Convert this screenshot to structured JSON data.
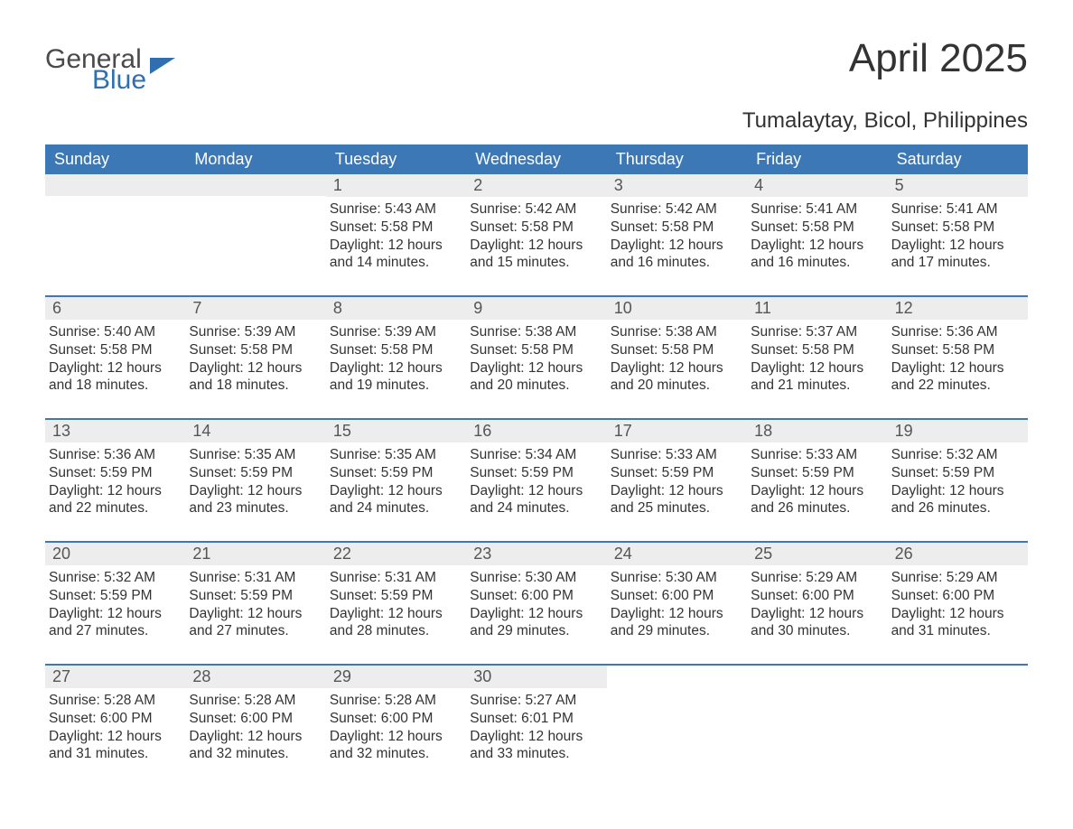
{
  "logo": {
    "text1": "General",
    "text2": "Blue",
    "color1": "#4a4a4a",
    "color2": "#2f6fb0"
  },
  "title": "April 2025",
  "location": "Tumalaytay, Bicol, Philippines",
  "colors": {
    "header_bg": "#3b78b5",
    "header_text": "#ffffff",
    "daynum_bg": "#ededed",
    "daynum_text": "#555555",
    "body_text": "#333333",
    "week_border": "#3b78b5",
    "page_bg": "#ffffff"
  },
  "fonts": {
    "title_size": 44,
    "location_size": 24,
    "header_size": 18,
    "daynum_size": 18,
    "body_size": 15.5
  },
  "day_names": [
    "Sunday",
    "Monday",
    "Tuesday",
    "Wednesday",
    "Thursday",
    "Friday",
    "Saturday"
  ],
  "weeks": [
    [
      {
        "n": "",
        "sunrise": "",
        "sunset": "",
        "daylight1": "",
        "daylight2": ""
      },
      {
        "n": "",
        "sunrise": "",
        "sunset": "",
        "daylight1": "",
        "daylight2": ""
      },
      {
        "n": "1",
        "sunrise": "Sunrise: 5:43 AM",
        "sunset": "Sunset: 5:58 PM",
        "daylight1": "Daylight: 12 hours",
        "daylight2": "and 14 minutes."
      },
      {
        "n": "2",
        "sunrise": "Sunrise: 5:42 AM",
        "sunset": "Sunset: 5:58 PM",
        "daylight1": "Daylight: 12 hours",
        "daylight2": "and 15 minutes."
      },
      {
        "n": "3",
        "sunrise": "Sunrise: 5:42 AM",
        "sunset": "Sunset: 5:58 PM",
        "daylight1": "Daylight: 12 hours",
        "daylight2": "and 16 minutes."
      },
      {
        "n": "4",
        "sunrise": "Sunrise: 5:41 AM",
        "sunset": "Sunset: 5:58 PM",
        "daylight1": "Daylight: 12 hours",
        "daylight2": "and 16 minutes."
      },
      {
        "n": "5",
        "sunrise": "Sunrise: 5:41 AM",
        "sunset": "Sunset: 5:58 PM",
        "daylight1": "Daylight: 12 hours",
        "daylight2": "and 17 minutes."
      }
    ],
    [
      {
        "n": "6",
        "sunrise": "Sunrise: 5:40 AM",
        "sunset": "Sunset: 5:58 PM",
        "daylight1": "Daylight: 12 hours",
        "daylight2": "and 18 minutes."
      },
      {
        "n": "7",
        "sunrise": "Sunrise: 5:39 AM",
        "sunset": "Sunset: 5:58 PM",
        "daylight1": "Daylight: 12 hours",
        "daylight2": "and 18 minutes."
      },
      {
        "n": "8",
        "sunrise": "Sunrise: 5:39 AM",
        "sunset": "Sunset: 5:58 PM",
        "daylight1": "Daylight: 12 hours",
        "daylight2": "and 19 minutes."
      },
      {
        "n": "9",
        "sunrise": "Sunrise: 5:38 AM",
        "sunset": "Sunset: 5:58 PM",
        "daylight1": "Daylight: 12 hours",
        "daylight2": "and 20 minutes."
      },
      {
        "n": "10",
        "sunrise": "Sunrise: 5:38 AM",
        "sunset": "Sunset: 5:58 PM",
        "daylight1": "Daylight: 12 hours",
        "daylight2": "and 20 minutes."
      },
      {
        "n": "11",
        "sunrise": "Sunrise: 5:37 AM",
        "sunset": "Sunset: 5:58 PM",
        "daylight1": "Daylight: 12 hours",
        "daylight2": "and 21 minutes."
      },
      {
        "n": "12",
        "sunrise": "Sunrise: 5:36 AM",
        "sunset": "Sunset: 5:58 PM",
        "daylight1": "Daylight: 12 hours",
        "daylight2": "and 22 minutes."
      }
    ],
    [
      {
        "n": "13",
        "sunrise": "Sunrise: 5:36 AM",
        "sunset": "Sunset: 5:59 PM",
        "daylight1": "Daylight: 12 hours",
        "daylight2": "and 22 minutes."
      },
      {
        "n": "14",
        "sunrise": "Sunrise: 5:35 AM",
        "sunset": "Sunset: 5:59 PM",
        "daylight1": "Daylight: 12 hours",
        "daylight2": "and 23 minutes."
      },
      {
        "n": "15",
        "sunrise": "Sunrise: 5:35 AM",
        "sunset": "Sunset: 5:59 PM",
        "daylight1": "Daylight: 12 hours",
        "daylight2": "and 24 minutes."
      },
      {
        "n": "16",
        "sunrise": "Sunrise: 5:34 AM",
        "sunset": "Sunset: 5:59 PM",
        "daylight1": "Daylight: 12 hours",
        "daylight2": "and 24 minutes."
      },
      {
        "n": "17",
        "sunrise": "Sunrise: 5:33 AM",
        "sunset": "Sunset: 5:59 PM",
        "daylight1": "Daylight: 12 hours",
        "daylight2": "and 25 minutes."
      },
      {
        "n": "18",
        "sunrise": "Sunrise: 5:33 AM",
        "sunset": "Sunset: 5:59 PM",
        "daylight1": "Daylight: 12 hours",
        "daylight2": "and 26 minutes."
      },
      {
        "n": "19",
        "sunrise": "Sunrise: 5:32 AM",
        "sunset": "Sunset: 5:59 PM",
        "daylight1": "Daylight: 12 hours",
        "daylight2": "and 26 minutes."
      }
    ],
    [
      {
        "n": "20",
        "sunrise": "Sunrise: 5:32 AM",
        "sunset": "Sunset: 5:59 PM",
        "daylight1": "Daylight: 12 hours",
        "daylight2": "and 27 minutes."
      },
      {
        "n": "21",
        "sunrise": "Sunrise: 5:31 AM",
        "sunset": "Sunset: 5:59 PM",
        "daylight1": "Daylight: 12 hours",
        "daylight2": "and 27 minutes."
      },
      {
        "n": "22",
        "sunrise": "Sunrise: 5:31 AM",
        "sunset": "Sunset: 5:59 PM",
        "daylight1": "Daylight: 12 hours",
        "daylight2": "and 28 minutes."
      },
      {
        "n": "23",
        "sunrise": "Sunrise: 5:30 AM",
        "sunset": "Sunset: 6:00 PM",
        "daylight1": "Daylight: 12 hours",
        "daylight2": "and 29 minutes."
      },
      {
        "n": "24",
        "sunrise": "Sunrise: 5:30 AM",
        "sunset": "Sunset: 6:00 PM",
        "daylight1": "Daylight: 12 hours",
        "daylight2": "and 29 minutes."
      },
      {
        "n": "25",
        "sunrise": "Sunrise: 5:29 AM",
        "sunset": "Sunset: 6:00 PM",
        "daylight1": "Daylight: 12 hours",
        "daylight2": "and 30 minutes."
      },
      {
        "n": "26",
        "sunrise": "Sunrise: 5:29 AM",
        "sunset": "Sunset: 6:00 PM",
        "daylight1": "Daylight: 12 hours",
        "daylight2": "and 31 minutes."
      }
    ],
    [
      {
        "n": "27",
        "sunrise": "Sunrise: 5:28 AM",
        "sunset": "Sunset: 6:00 PM",
        "daylight1": "Daylight: 12 hours",
        "daylight2": "and 31 minutes."
      },
      {
        "n": "28",
        "sunrise": "Sunrise: 5:28 AM",
        "sunset": "Sunset: 6:00 PM",
        "daylight1": "Daylight: 12 hours",
        "daylight2": "and 32 minutes."
      },
      {
        "n": "29",
        "sunrise": "Sunrise: 5:28 AM",
        "sunset": "Sunset: 6:00 PM",
        "daylight1": "Daylight: 12 hours",
        "daylight2": "and 32 minutes."
      },
      {
        "n": "30",
        "sunrise": "Sunrise: 5:27 AM",
        "sunset": "Sunset: 6:01 PM",
        "daylight1": "Daylight: 12 hours",
        "daylight2": "and 33 minutes."
      },
      {
        "n": "",
        "sunrise": "",
        "sunset": "",
        "daylight1": "",
        "daylight2": ""
      },
      {
        "n": "",
        "sunrise": "",
        "sunset": "",
        "daylight1": "",
        "daylight2": ""
      },
      {
        "n": "",
        "sunrise": "",
        "sunset": "",
        "daylight1": "",
        "daylight2": ""
      }
    ]
  ]
}
